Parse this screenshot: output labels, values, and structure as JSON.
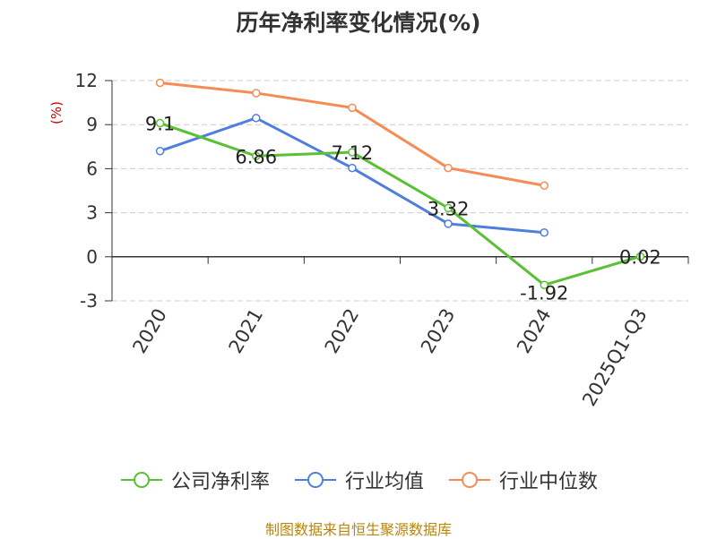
{
  "chart_data": {
    "type": "line",
    "title": "历年净利率变化情况(%)",
    "ylabel": "(%)",
    "xlabel": "",
    "categories": [
      "2020",
      "2021",
      "2022",
      "2023",
      "2024",
      "2025Q1-Q3"
    ],
    "ylim": [
      -3,
      12
    ],
    "yticks": [
      -3,
      0,
      3,
      6,
      9,
      12
    ],
    "grid": true,
    "legend_position": "bottom",
    "series": [
      {
        "name": "公司净利率",
        "color": "#5ac034",
        "values": [
          9.1,
          6.86,
          7.12,
          3.32,
          -1.92,
          0.02
        ],
        "labels": [
          "9.1",
          "6.86",
          "7.12",
          "3.32",
          "-1.92",
          "0.02"
        ]
      },
      {
        "name": "行业均值",
        "color": "#4f7fdc",
        "values": [
          7.2,
          9.45,
          6.05,
          2.25,
          1.65,
          null
        ]
      },
      {
        "name": "行业中位数",
        "color": "#f58c55",
        "values": [
          11.85,
          11.15,
          10.15,
          6.05,
          4.85,
          null
        ]
      }
    ]
  },
  "source": "制图数据来自恒生聚源数据库"
}
